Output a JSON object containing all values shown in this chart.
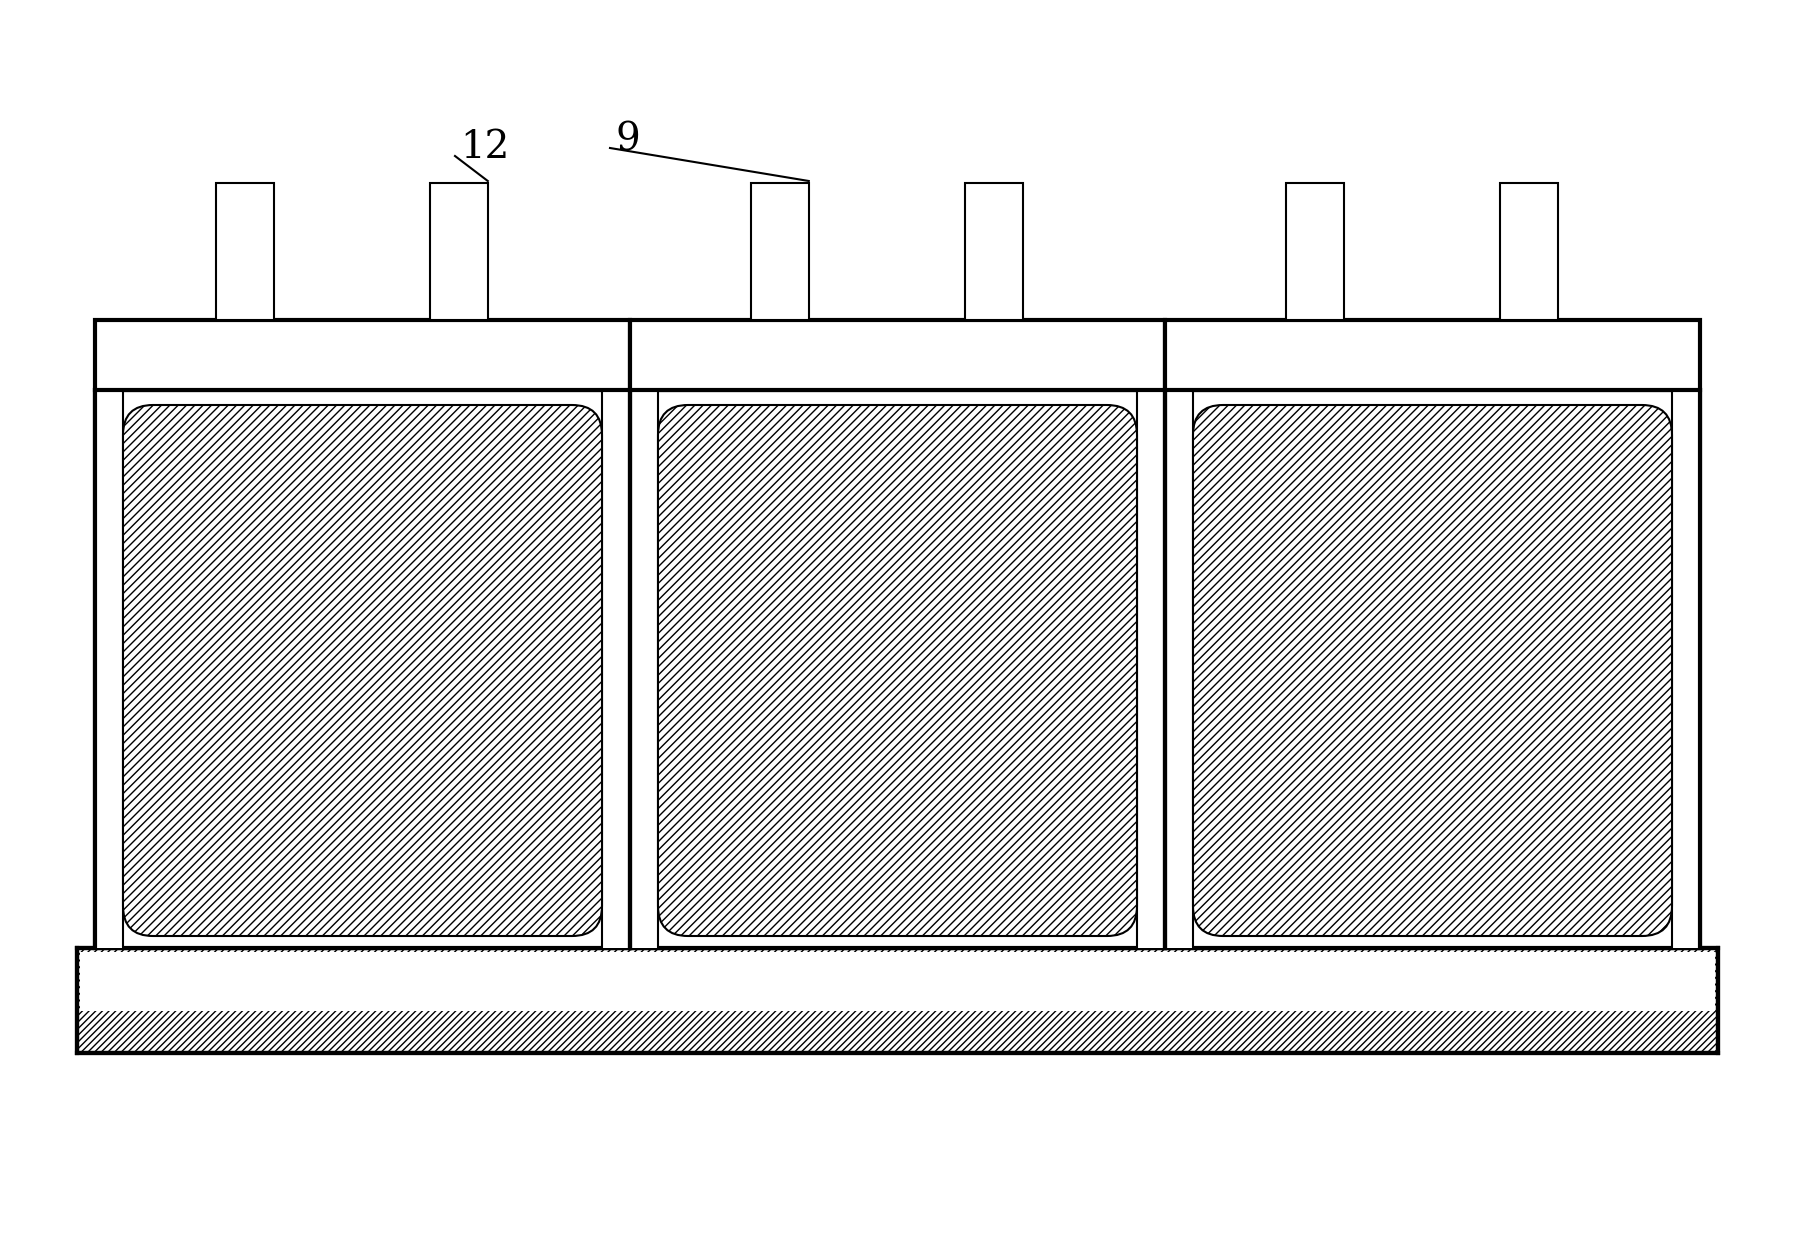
{
  "bg_color": "#ffffff",
  "line_color": "#000000",
  "fig_width": 17.95,
  "fig_height": 12.48,
  "dpi": 100,
  "label_12": "12",
  "label_9": "9"
}
